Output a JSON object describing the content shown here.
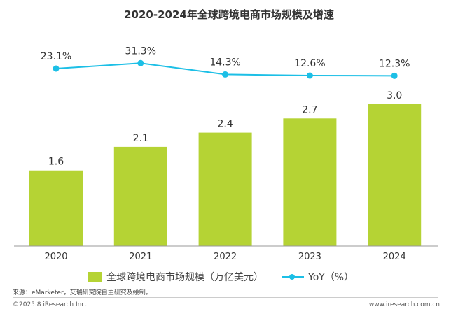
{
  "chart_data": {
    "type": "bar+line",
    "title": "2020-2024年全球跨境电商市场规模及增速",
    "categories": [
      "2020",
      "2021",
      "2022",
      "2023",
      "2024"
    ],
    "series": [
      {
        "name": "全球跨境电商市场规模（万亿美元）",
        "type": "bar",
        "values": [
          1.6,
          2.1,
          2.4,
          2.7,
          3.0
        ],
        "labels": [
          "1.6",
          "2.1",
          "2.4",
          "2.7",
          "3.0"
        ],
        "color": "#b5d334"
      },
      {
        "name": "YoY（%）",
        "type": "line",
        "values": [
          23.1,
          31.3,
          14.3,
          12.6,
          12.3
        ],
        "labels": [
          "23.1%",
          "31.3%",
          "14.3%",
          "12.6%",
          "12.3%"
        ],
        "color": "#1cbfe6"
      }
    ],
    "ylim": [
      0,
      3.0
    ],
    "legend": "bottom"
  },
  "footer": {
    "source": "来源：eMarketer，艾瑞研究院自主研究及绘制。",
    "copyright": "©2025.8 iResearch Inc.",
    "website": "www.iresearch.com.cn"
  }
}
